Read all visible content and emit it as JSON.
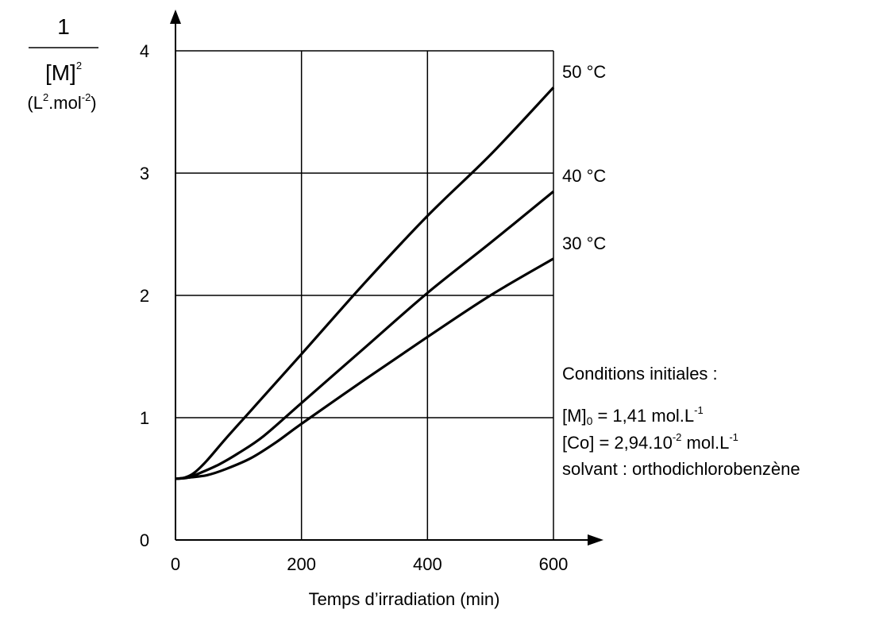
{
  "chart_data": {
    "type": "line",
    "x_axis": {
      "label": "Temps d’irradiation  (min)",
      "range": [
        0,
        600
      ],
      "ticks": [
        0,
        200,
        400,
        600
      ]
    },
    "y_axis": {
      "label_numerator": "1",
      "label_denominator": "[M]",
      "label_denominator_exp": "2",
      "unit_open": "(L",
      "unit_exp1": "2",
      "unit_mid": ".mol",
      "unit_exp2": "-2",
      "unit_close": ")",
      "range": [
        0,
        4
      ],
      "ticks": [
        0,
        1,
        2,
        3,
        4
      ]
    },
    "grid": true,
    "series": [
      {
        "name": "50 °C",
        "points": [
          [
            0,
            0.5
          ],
          [
            15,
            0.51
          ],
          [
            30,
            0.55
          ],
          [
            50,
            0.65
          ],
          [
            80,
            0.83
          ],
          [
            120,
            1.06
          ],
          [
            200,
            1.52
          ],
          [
            300,
            2.1
          ],
          [
            400,
            2.65
          ],
          [
            500,
            3.15
          ],
          [
            600,
            3.7
          ]
        ]
      },
      {
        "name": "40 °C",
        "points": [
          [
            0,
            0.5
          ],
          [
            20,
            0.51
          ],
          [
            40,
            0.55
          ],
          [
            70,
            0.62
          ],
          [
            100,
            0.71
          ],
          [
            140,
            0.85
          ],
          [
            200,
            1.12
          ],
          [
            300,
            1.57
          ],
          [
            400,
            2.02
          ],
          [
            500,
            2.43
          ],
          [
            600,
            2.85
          ]
        ]
      },
      {
        "name": "30 °C",
        "points": [
          [
            0,
            0.5
          ],
          [
            20,
            0.51
          ],
          [
            50,
            0.53
          ],
          [
            80,
            0.58
          ],
          [
            120,
            0.67
          ],
          [
            160,
            0.8
          ],
          [
            200,
            0.95
          ],
          [
            300,
            1.31
          ],
          [
            400,
            1.66
          ],
          [
            500,
            2.0
          ],
          [
            600,
            2.3
          ]
        ]
      }
    ],
    "annotations": {
      "title": "Conditions initiales :",
      "line1_pre": "[M]",
      "line1_sub": "0",
      "line1_post": " = 1,41 mol.L",
      "line1_sup": "-1",
      "line2_pre": "[Co] = 2,94.10",
      "line2_sup1": "-2",
      "line2_post": " mol.L",
      "line2_sup2": "-1",
      "line3": "solvant : orthodichlorobenzène"
    }
  }
}
